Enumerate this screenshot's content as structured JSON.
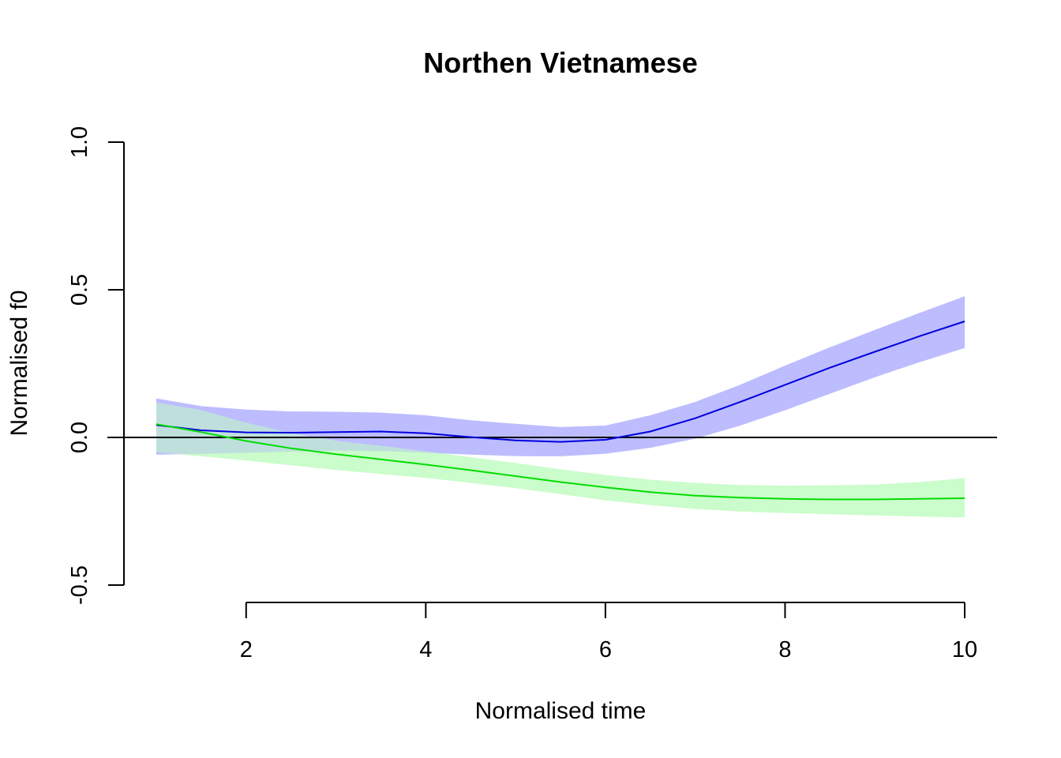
{
  "chart_data": {
    "type": "line",
    "title": "Northen Vietnamese",
    "xlabel": "Normalised time",
    "ylabel": "Normalised f0",
    "xlim": [
      1,
      10
    ],
    "ylim": [
      -0.5,
      1.0
    ],
    "x_ticks": [
      2,
      4,
      6,
      8,
      10
    ],
    "y_ticks": [
      -0.5,
      0.0,
      0.5,
      1.0
    ],
    "x_tick_labels": [
      "2",
      "4",
      "6",
      "8",
      "10"
    ],
    "y_tick_labels": [
      "-0.5",
      "0.0",
      "0.5",
      "1.0"
    ],
    "reference_line": 0.0,
    "grid": false,
    "legend": "none",
    "series": [
      {
        "color": "#0000dd",
        "ribbon_color": "#bcbcff",
        "x": [
          1,
          1.5,
          2,
          2.5,
          3,
          3.5,
          4,
          4.5,
          5,
          5.5,
          6,
          6.5,
          7,
          7.5,
          8,
          8.5,
          9,
          9.5,
          10
        ],
        "y": [
          0.042,
          0.024,
          0.017,
          0.016,
          0.018,
          0.02,
          0.014,
          0.001,
          -0.01,
          -0.015,
          -0.008,
          0.02,
          0.065,
          0.12,
          0.178,
          0.236,
          0.29,
          0.343,
          0.393
        ],
        "lower": [
          -0.058,
          -0.056,
          -0.052,
          -0.048,
          -0.045,
          -0.046,
          -0.052,
          -0.058,
          -0.063,
          -0.064,
          -0.055,
          -0.035,
          -0.004,
          0.04,
          0.092,
          0.148,
          0.204,
          0.255,
          0.303
        ],
        "upper": [
          0.132,
          0.106,
          0.094,
          0.088,
          0.087,
          0.084,
          0.075,
          0.058,
          0.046,
          0.035,
          0.04,
          0.075,
          0.12,
          0.178,
          0.243,
          0.305,
          0.364,
          0.422,
          0.478
        ]
      },
      {
        "color": "#00dd00",
        "ribbon_color": "#c2fcc2",
        "x": [
          1,
          1.5,
          2,
          2.5,
          3,
          3.5,
          4,
          4.5,
          5,
          5.5,
          6,
          6.5,
          7,
          7.5,
          8,
          8.5,
          9,
          9.5,
          10
        ],
        "y": [
          0.045,
          0.018,
          -0.012,
          -0.037,
          -0.057,
          -0.074,
          -0.092,
          -0.111,
          -0.131,
          -0.151,
          -0.169,
          -0.185,
          -0.197,
          -0.204,
          -0.208,
          -0.21,
          -0.21,
          -0.208,
          -0.206
        ],
        "lower": [
          -0.05,
          -0.064,
          -0.078,
          -0.094,
          -0.11,
          -0.124,
          -0.137,
          -0.154,
          -0.172,
          -0.192,
          -0.213,
          -0.229,
          -0.242,
          -0.251,
          -0.256,
          -0.26,
          -0.264,
          -0.268,
          -0.271
        ],
        "upper": [
          0.118,
          0.093,
          0.05,
          0.014,
          -0.011,
          -0.028,
          -0.047,
          -0.067,
          -0.087,
          -0.108,
          -0.127,
          -0.143,
          -0.154,
          -0.161,
          -0.163,
          -0.162,
          -0.16,
          -0.151,
          -0.138
        ]
      }
    ]
  }
}
